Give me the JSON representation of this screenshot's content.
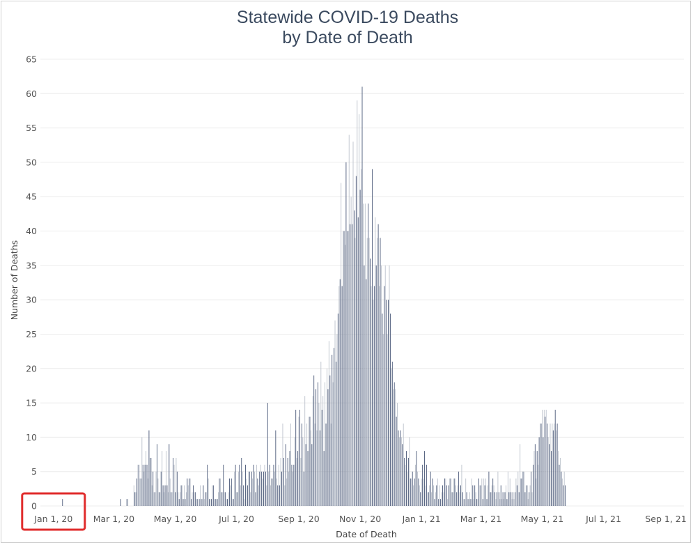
{
  "chart_data": {
    "type": "bar",
    "title": [
      "Statewide COVID-19 Deaths",
      "by Date of Death"
    ],
    "xlabel": "Date of Death",
    "ylabel": "Number of Deaths",
    "ylim": [
      0,
      65
    ],
    "yticks": [
      0,
      5,
      10,
      15,
      20,
      25,
      30,
      35,
      40,
      45,
      50,
      55,
      60,
      65
    ],
    "xlim": [
      "2019-12-19",
      "2021-09-19"
    ],
    "xticks": [
      {
        "label": "Jan 1, 20",
        "date": "2020-01-01"
      },
      {
        "label": "Mar 1, 20",
        "date": "2020-03-01"
      },
      {
        "label": "May 1, 20",
        "date": "2020-05-01"
      },
      {
        "label": "Jul 1, 20",
        "date": "2020-07-01"
      },
      {
        "label": "Sep 1, 20",
        "date": "2020-09-01"
      },
      {
        "label": "Nov 1, 20",
        "date": "2020-11-01"
      },
      {
        "label": "Jan 1, 21",
        "date": "2021-01-01"
      },
      {
        "label": "Mar 1, 21",
        "date": "2021-03-01"
      },
      {
        "label": "May 1, 21",
        "date": "2021-05-01"
      },
      {
        "label": "Jul 1, 21",
        "date": "2021-07-01"
      },
      {
        "label": "Sep 1, 21",
        "date": "2021-09-01"
      }
    ],
    "grid": "horizontal",
    "colors": {
      "bar_dark": "#4a5878",
      "bar_light": "#bcc2cc",
      "grid": "#ececec",
      "highlight": "#e02b2b"
    },
    "highlight_box": {
      "target": "Jan 1, 20"
    },
    "series": [
      {
        "start": "2020-01-10",
        "values": [
          1
        ]
      },
      {
        "start": "2020-03-08",
        "values": [
          1,
          0,
          0,
          0,
          0,
          0,
          1,
          1,
          0,
          0,
          0,
          0,
          0,
          3,
          2,
          2,
          4,
          6,
          6,
          4,
          4,
          10,
          6,
          5,
          6,
          8,
          6,
          4,
          11,
          7,
          7,
          3,
          5,
          2,
          2,
          5,
          9,
          4,
          2,
          2,
          5,
          8,
          3,
          2,
          3,
          8,
          3,
          2,
          9,
          4,
          2,
          2,
          7,
          6,
          2,
          7,
          5,
          2,
          1,
          2,
          3,
          3,
          1,
          3,
          1,
          2,
          4,
          3,
          4,
          4,
          1,
          2,
          3,
          2,
          2,
          1,
          1,
          0,
          1,
          3,
          1,
          1,
          3,
          1,
          2,
          2,
          6,
          4,
          1,
          1,
          1,
          3,
          3,
          1,
          1,
          1,
          1,
          2,
          4,
          4,
          2,
          2,
          6,
          2,
          2,
          1,
          1,
          2,
          4,
          3,
          4,
          1,
          1,
          5,
          6,
          2,
          2,
          5,
          6,
          3,
          7,
          5,
          3,
          1,
          6,
          4,
          3,
          5,
          5,
          2,
          5,
          4,
          6,
          5,
          2,
          6,
          4,
          3,
          5,
          6,
          5,
          4,
          5,
          6,
          5,
          3,
          15,
          5,
          6,
          3,
          4,
          4,
          6,
          5,
          11,
          4,
          3,
          6,
          3,
          7,
          5,
          12,
          7,
          3,
          9,
          4,
          7,
          5,
          8,
          12,
          6,
          5,
          6,
          10,
          14,
          7,
          8,
          13,
          14,
          7,
          12,
          10,
          5,
          16,
          9,
          12,
          8,
          13,
          13,
          11,
          9,
          16,
          19,
          12,
          17,
          11,
          18,
          15,
          11,
          21,
          14,
          16,
          8,
          18,
          12,
          20,
          17,
          24,
          19,
          12,
          22,
          18,
          23,
          27,
          21,
          25,
          28,
          32,
          33,
          47,
          32,
          40,
          40,
          38,
          50,
          40,
          40,
          54,
          41,
          45,
          41,
          53,
          43,
          39,
          48,
          59,
          42,
          57,
          46,
          49,
          61,
          44,
          35,
          44,
          33,
          39,
          44,
          39,
          36,
          32,
          49,
          30,
          32,
          42,
          35,
          39,
          41,
          32,
          39,
          35,
          28,
          25,
          32,
          35,
          30,
          25,
          30,
          35,
          28,
          20,
          21,
          17,
          18,
          17,
          13,
          15,
          11,
          10,
          11,
          10,
          9,
          12,
          7,
          6,
          8,
          5,
          7,
          10,
          4,
          4,
          5,
          3,
          4,
          6,
          8,
          5,
          4,
          3,
          2,
          4,
          6,
          4,
          8,
          3,
          6,
          2,
          2,
          3,
          5,
          2,
          4,
          3,
          1,
          2,
          3,
          4,
          1,
          3,
          1,
          2,
          3,
          2,
          4,
          4,
          3,
          1,
          3,
          4,
          4,
          2,
          2,
          4,
          4,
          3,
          2,
          3,
          5,
          2,
          3,
          6,
          2,
          1,
          1,
          4,
          2,
          1,
          1,
          2,
          1,
          4,
          3,
          1,
          3,
          2,
          1,
          1,
          4,
          3,
          3,
          4,
          1,
          4,
          3,
          4,
          1,
          3,
          5,
          2,
          2,
          3,
          4,
          3,
          2,
          1,
          2,
          5,
          2,
          1,
          3,
          1,
          2,
          1,
          2,
          3,
          1,
          5,
          2,
          4,
          2,
          1,
          2,
          1,
          2,
          4,
          3,
          5,
          2,
          9,
          4,
          4,
          5,
          5,
          2,
          3,
          3,
          1,
          2,
          3,
          5,
          2,
          6,
          8,
          9,
          4,
          8,
          6,
          10,
          12,
          12,
          14,
          10,
          14,
          13,
          14,
          12,
          10,
          9,
          12,
          8,
          12,
          11,
          12,
          14,
          11,
          12,
          8,
          6,
          7,
          5,
          4,
          3,
          5,
          3
        ]
      }
    ]
  }
}
